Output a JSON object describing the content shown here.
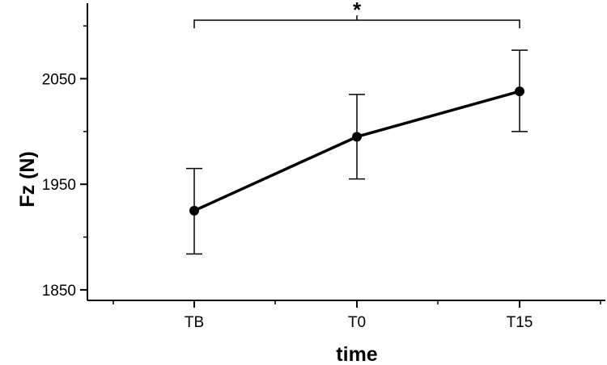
{
  "chart_data": {
    "type": "line",
    "categories": [
      "TB",
      "T0",
      "T15"
    ],
    "series": [
      {
        "values": [
          1925,
          1995,
          2038
        ],
        "error_low": [
          1884,
          1955,
          2000
        ],
        "error_high": [
          1965,
          2035,
          2077
        ]
      }
    ],
    "xlabel": "time",
    "ylabel": "Fz (N)",
    "yticks": [
      1850,
      1950,
      2050
    ],
    "ytick_labels": [
      "1850",
      "1950",
      "2050"
    ],
    "ylim": [
      1840,
      2110
    ],
    "grid": false,
    "annotations": [
      {
        "type": "significance-bracket",
        "from": "TB",
        "to": "T15",
        "label": "*"
      }
    ],
    "colors": {
      "line": "#000000",
      "marker": "#000000",
      "axis": "#000000"
    }
  }
}
